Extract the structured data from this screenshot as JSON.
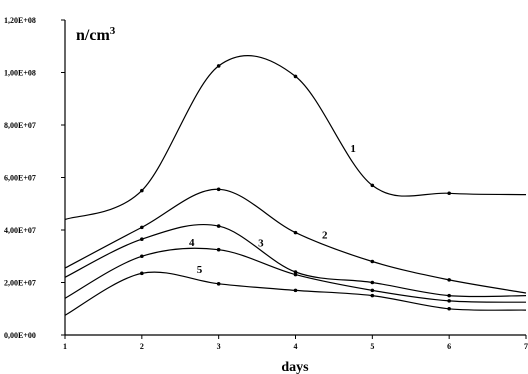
{
  "chart_data": {
    "type": "line",
    "title": "",
    "xlabel": "days",
    "unit_label": "n/cm",
    "unit_superscript": "3",
    "xlim": [
      1,
      7
    ],
    "ylim": [
      0,
      120000000
    ],
    "x_ticks": [
      1,
      2,
      3,
      4,
      5,
      6,
      7
    ],
    "x_tick_labels": [
      "1",
      "2",
      "3",
      "4",
      "5",
      "6",
      "7"
    ],
    "y_ticks": [
      0,
      20000000,
      40000000,
      60000000,
      80000000,
      100000000,
      120000000
    ],
    "y_tick_labels": [
      "0,00E+00",
      "2,00E+07",
      "4,00E+07",
      "6,00E+07",
      "8,00E+07",
      "1,00E+08",
      "1,20E+08"
    ],
    "grid": false,
    "legend": "none",
    "series": [
      {
        "name": "1",
        "x": [
          1,
          2,
          3,
          4,
          5,
          6,
          7
        ],
        "values": [
          44000000,
          55000000,
          102500000,
          98500000,
          57000000,
          54000000,
          53500000
        ]
      },
      {
        "name": "2",
        "x": [
          1,
          2,
          3,
          4,
          5,
          6,
          7
        ],
        "values": [
          25500000,
          41000000,
          55500000,
          39000000,
          28000000,
          21000000,
          16000000
        ]
      },
      {
        "name": "3",
        "x": [
          1,
          2,
          3,
          4,
          5,
          6,
          7
        ],
        "values": [
          22000000,
          36500000,
          41500000,
          24000000,
          20000000,
          15000000,
          15000000
        ]
      },
      {
        "name": "4",
        "x": [
          1,
          2,
          3,
          4,
          5,
          6,
          7
        ],
        "values": [
          14000000,
          30000000,
          32500000,
          23000000,
          17000000,
          13000000,
          12500000
        ]
      },
      {
        "name": "5",
        "x": [
          1,
          2,
          3,
          4,
          5,
          6,
          7
        ],
        "values": [
          7500000,
          23500000,
          19500000,
          17000000,
          15000000,
          10000000,
          9500000
        ]
      }
    ]
  }
}
